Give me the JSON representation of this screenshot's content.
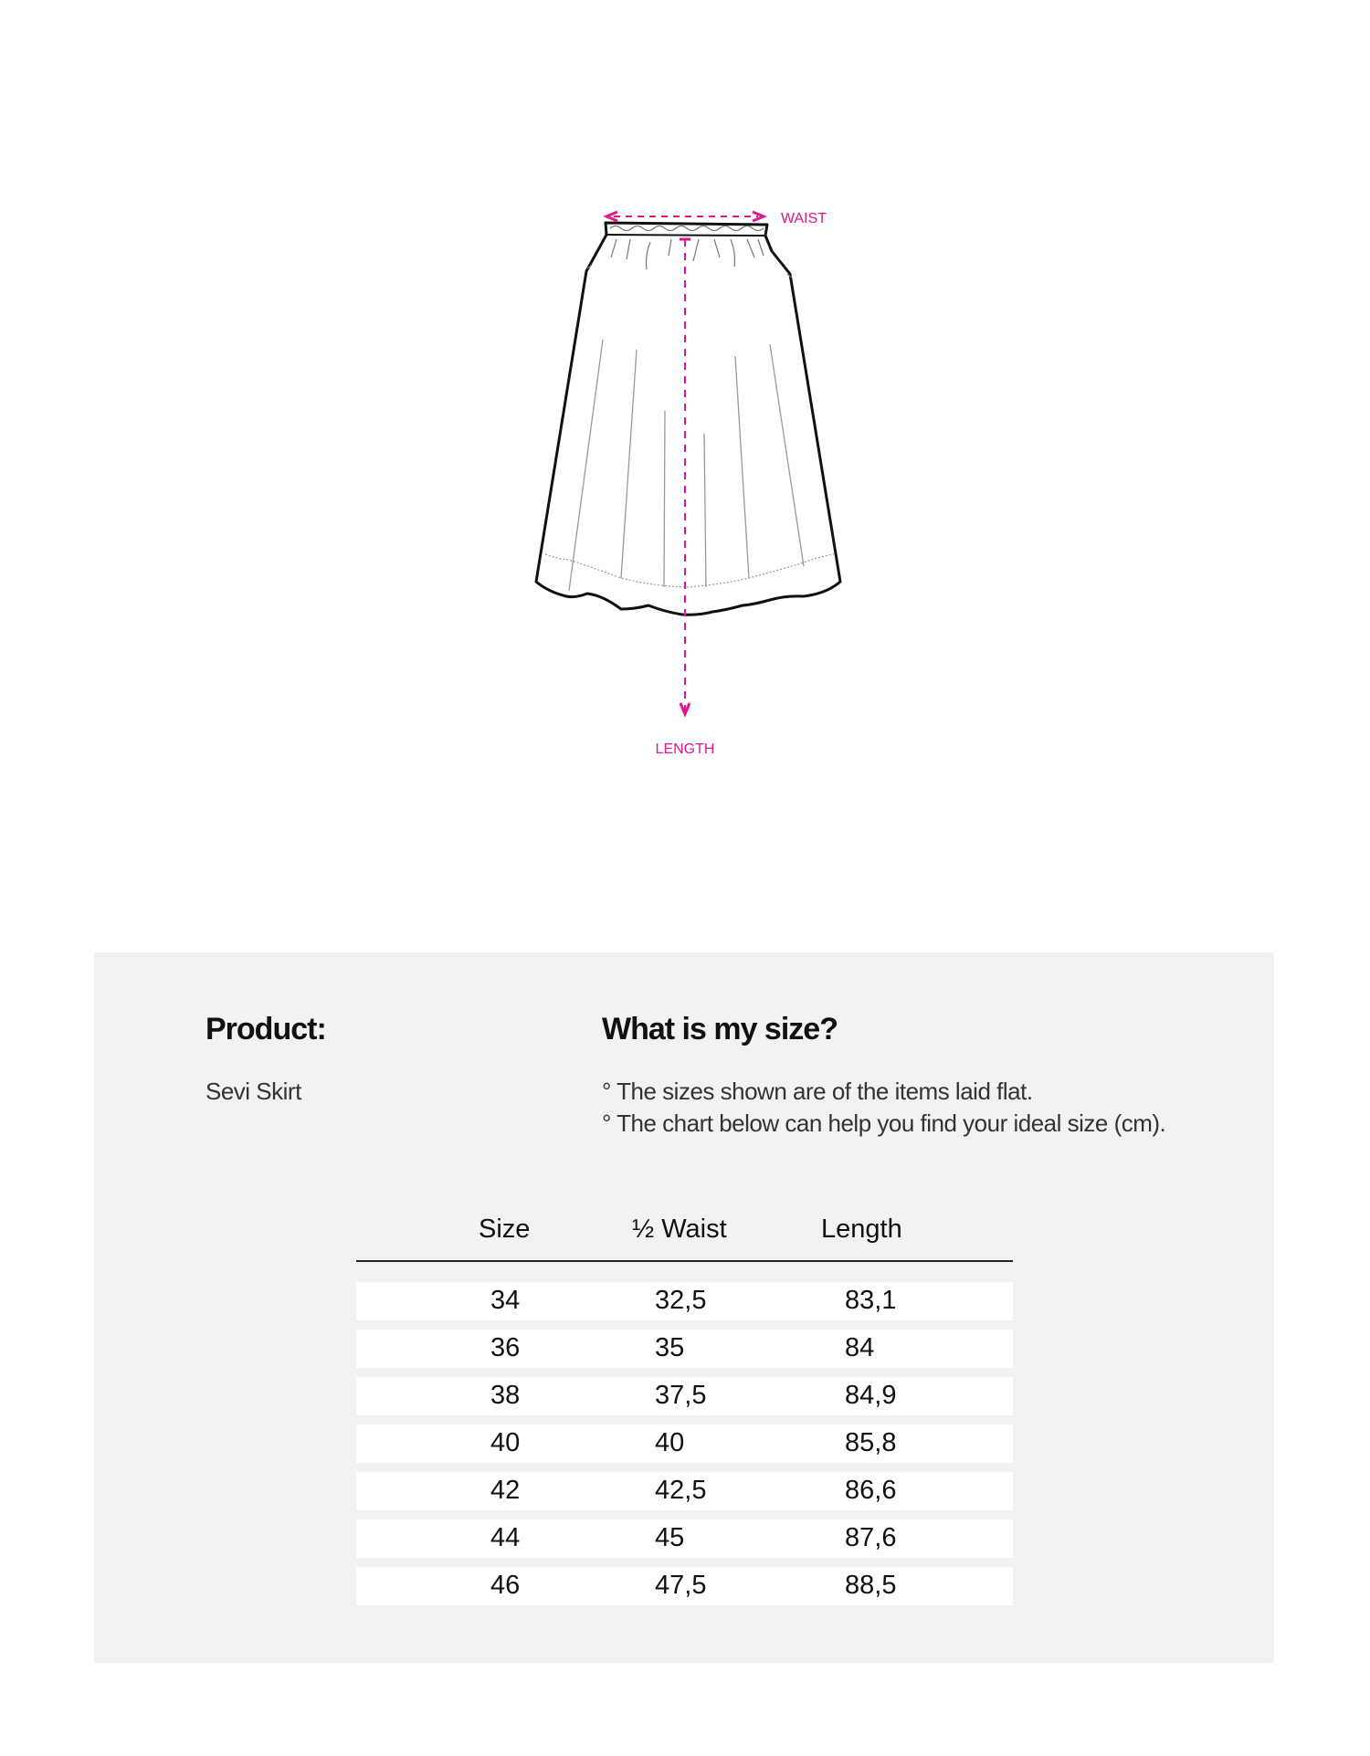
{
  "diagram": {
    "waist_label": "WAIST",
    "length_label": "LENGTH",
    "accent_color": "#e0168a"
  },
  "product": {
    "heading": "Product:",
    "name": "Sevi Skirt"
  },
  "size_help": {
    "heading": "What is my size?",
    "notes": [
      "° The sizes shown are of the items laid flat.",
      "° The chart below can help you find your ideal size (cm)."
    ]
  },
  "size_table": {
    "headers": [
      "Size",
      "½ Waist",
      "Length"
    ],
    "rows": [
      [
        "34",
        "32,5",
        "83,1"
      ],
      [
        "36",
        "35",
        "84"
      ],
      [
        "38",
        "37,5",
        "84,9"
      ],
      [
        "40",
        "40",
        "85,8"
      ],
      [
        "42",
        "42,5",
        "86,6"
      ],
      [
        "44",
        "45",
        "87,6"
      ],
      [
        "46",
        "47,5",
        "88,5"
      ]
    ]
  }
}
